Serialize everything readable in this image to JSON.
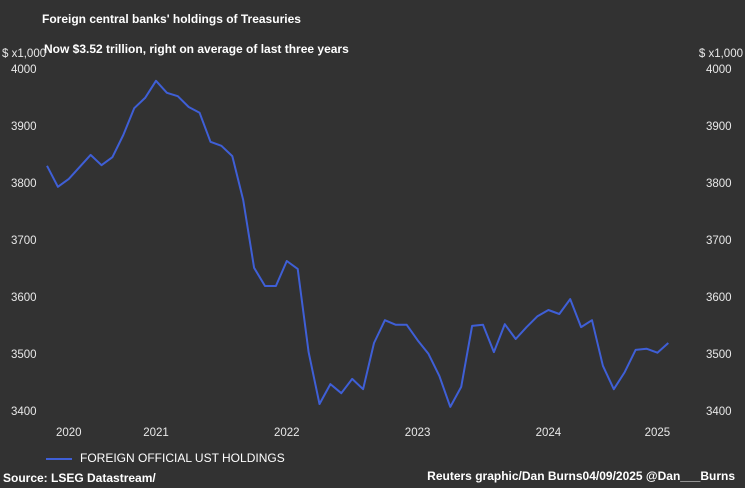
{
  "chart_data": {
    "type": "line",
    "title": "Foreign central banks' holdings of Treasuries",
    "subtitle": "Now $3.52 trillion, right on average of last three years",
    "y_label": "$ x1,000",
    "y2_label": "$ x1,000",
    "source": "Source: LSEG Datastream/",
    "credit": "Reuters graphic/Dan Burns04/09/2025 @Dan___Burns",
    "categories": [
      null,
      null,
      "2020",
      null,
      null,
      null,
      null,
      null,
      null,
      null,
      "2021",
      null,
      null,
      null,
      null,
      null,
      null,
      null,
      null,
      null,
      null,
      null,
      "2022",
      null,
      null,
      null,
      null,
      null,
      null,
      null,
      null,
      null,
      null,
      null,
      "2023",
      null,
      null,
      null,
      null,
      null,
      null,
      null,
      null,
      null,
      null,
      null,
      "2024",
      null,
      null,
      null,
      null,
      null,
      null,
      null,
      null,
      null,
      "2025",
      null
    ],
    "series": [
      {
        "name": "FOREIGN OFFICIAL UST HOLDINGS",
        "color": "#3f5fd6",
        "values": [
          3832,
          3795,
          3809,
          3830,
          3851,
          3833,
          3847,
          3886,
          3933,
          3951,
          3981,
          3960,
          3954,
          3935,
          3925,
          3874,
          3867,
          3849,
          3772,
          3653,
          3621,
          3621,
          3665,
          3651,
          3505,
          3414,
          3449,
          3433,
          3458,
          3440,
          3521,
          3561,
          3553,
          3553,
          3526,
          3502,
          3463,
          3409,
          3444,
          3551,
          3553,
          3505,
          3554,
          3528,
          3549,
          3568,
          3579,
          3572,
          3598,
          3549,
          3561,
          3481,
          3440,
          3470,
          3509,
          3511,
          3504,
          3521
        ]
      }
    ],
    "ylim": [
      3400,
      4000
    ],
    "yticks": [
      3400,
      3500,
      3600,
      3700,
      3800,
      3900,
      4000
    ],
    "y2lim": [
      3400,
      4000
    ],
    "y2ticks": [
      3400,
      3500,
      3600,
      3700,
      3800,
      3900,
      4000
    ],
    "legend": "bottom-left",
    "grid": false
  }
}
